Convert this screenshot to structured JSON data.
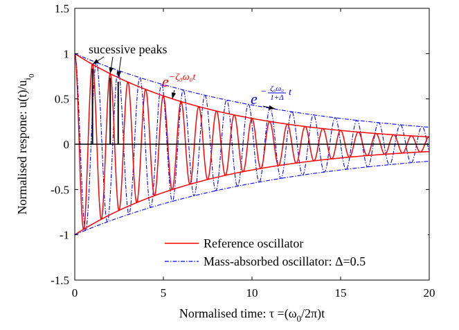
{
  "chart_data": {
    "type": "line",
    "xlabel": "Normalised time: τ =(ω",
    "xlabel_sub": "0",
    "xlabel_tail": "/2π)t",
    "ylabel": "Normalised respone: u(t)/u",
    "ylabel_sub": "i",
    "ylabel_sub2": "0",
    "xlim": [
      0,
      20
    ],
    "ylim": [
      -1.5,
      1.5
    ],
    "xticks": [
      0,
      5,
      10,
      15,
      20
    ],
    "xtick_labels": [
      "0",
      "5",
      "10",
      "15",
      "20"
    ],
    "yticks": [
      -1.5,
      -1,
      -0.5,
      0,
      0.5,
      1,
      1.5
    ],
    "ytick_labels": [
      "-1.5",
      "-1",
      "-0.5",
      "0",
      "0.5",
      "1",
      "1.5"
    ],
    "grid": false,
    "legend_position": "bottom-right",
    "series": [
      {
        "name": "Reference oscillator",
        "color": "#ff0000",
        "style": "solid",
        "zeta": 0.02,
        "frequency": 1.0,
        "amplitude": 1.0
      },
      {
        "name": "Mass-absorbed oscillator: Δ=0.5",
        "color": "#0000ff",
        "style": "dashdot",
        "zeta": 0.02,
        "frequency": 0.8165,
        "amplitude": 1.0
      }
    ],
    "envelopes": [
      {
        "series": 0,
        "decay_rate": 0.12566
      },
      {
        "series": 1,
        "decay_rate": 0.08378
      }
    ],
    "annotations": {
      "successive_peaks": {
        "text": "sucessive peaks",
        "targets": [
          [
            1.0,
            0.882
          ],
          [
            2.0,
            0.778
          ],
          [
            2.45,
            0.735
          ]
        ]
      },
      "ref_envelope": {
        "base": "e",
        "exponent": "−ζ₀ω₀t",
        "color": "#ff0000",
        "target": [
          5.5,
          0.5
        ]
      },
      "mass_envelope": {
        "base": "e",
        "exp_num": "ζ₀ω₀",
        "exp_den": "1+Δ",
        "exp_tail": "t",
        "color": "#0000ff",
        "target": [
          11.3,
          0.39
        ]
      }
    }
  }
}
